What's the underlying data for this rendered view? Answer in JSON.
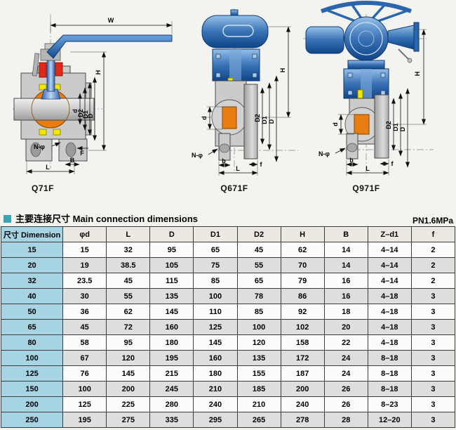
{
  "section": {
    "title_text": "主要连接尺寸 Main connection dimensions",
    "pressure": "PN1.6MPa"
  },
  "colors": {
    "accent_teal": "#36a7b7",
    "row_header_blue": "#a6d4e2",
    "header_beige": "#ece9e2",
    "alt_row_gray": "#dedfdc",
    "ball_orange": "#e87d12",
    "actuator_blue": "#2a66ad",
    "seat_yellow": "#f2e705",
    "packing_red": "#e02818"
  },
  "diagrams": [
    {
      "caption": "Q71F",
      "dims": {
        "w": "W",
        "h": "H",
        "d": "d",
        "d2": "D2",
        "d1": "D1",
        "D": "D",
        "n": "N-φ",
        "F": "F",
        "B": "B",
        "L": "L"
      }
    },
    {
      "caption": "Q671F",
      "dims": {
        "h": "H",
        "d": "d",
        "d2": "D2",
        "d1": "D1",
        "D": "D",
        "n": "N-φ",
        "b": "b",
        "L": "L",
        "f": "f"
      }
    },
    {
      "caption": "Q971F",
      "dims": {
        "h": "H",
        "d": "d",
        "d2": "D2",
        "d1": "D1",
        "D": "D",
        "n": "N-φ",
        "b": "b",
        "L": "L",
        "f": "f"
      }
    }
  ],
  "table": {
    "header": [
      "尺寸 Dimension",
      "φd",
      "L",
      "D",
      "D1",
      "D2",
      "H",
      "B",
      "Z–d1",
      "f"
    ],
    "rows": [
      [
        "15",
        "15",
        "32",
        "95",
        "65",
        "45",
        "62",
        "14",
        "4–14",
        "2"
      ],
      [
        "20",
        "19",
        "38.5",
        "105",
        "75",
        "55",
        "70",
        "14",
        "4–14",
        "2"
      ],
      [
        "32",
        "23.5",
        "45",
        "115",
        "85",
        "65",
        "79",
        "16",
        "4–14",
        "2"
      ],
      [
        "40",
        "30",
        "55",
        "135",
        "100",
        "78",
        "86",
        "16",
        "4–18",
        "3"
      ],
      [
        "50",
        "36",
        "62",
        "145",
        "110",
        "85",
        "92",
        "18",
        "4–18",
        "3"
      ],
      [
        "65",
        "45",
        "72",
        "160",
        "125",
        "100",
        "102",
        "20",
        "4–18",
        "3"
      ],
      [
        "80",
        "58",
        "95",
        "180",
        "145",
        "120",
        "158",
        "22",
        "4–18",
        "3"
      ],
      [
        "100",
        "67",
        "120",
        "195",
        "160",
        "135",
        "172",
        "24",
        "8–18",
        "3"
      ],
      [
        "125",
        "76",
        "145",
        "215",
        "180",
        "155",
        "187",
        "24",
        "8–18",
        "3"
      ],
      [
        "150",
        "100",
        "200",
        "245",
        "210",
        "185",
        "200",
        "26",
        "8–18",
        "3"
      ],
      [
        "200",
        "125",
        "225",
        "280",
        "240",
        "210",
        "240",
        "26",
        "8–23",
        "3"
      ],
      [
        "250",
        "195",
        "275",
        "335",
        "295",
        "265",
        "278",
        "28",
        "12–20",
        "3"
      ]
    ]
  }
}
